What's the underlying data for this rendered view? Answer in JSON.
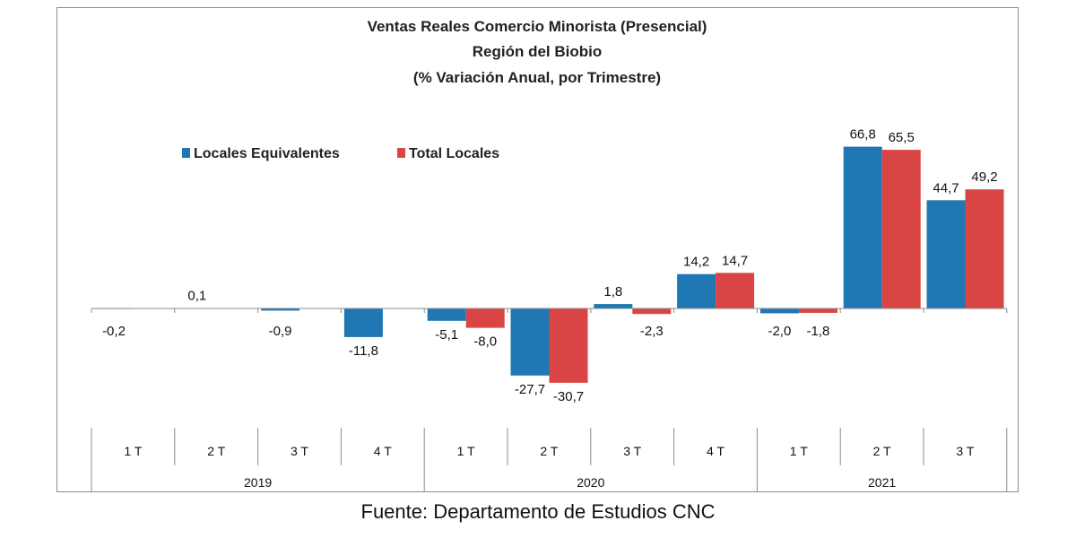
{
  "chart_data": {
    "type": "bar",
    "title": [
      "Ventas Reales Comercio Minorista (Presencial)",
      "Región del Biobio",
      "(% Variación Anual, por Trimestre)"
    ],
    "categories": [
      "1 T",
      "2 T",
      "3 T",
      "4 T",
      "1 T",
      "2 T",
      "3 T",
      "4 T",
      "1 T",
      "2 T",
      "3 T"
    ],
    "groups": [
      {
        "label": "2019",
        "count": 4
      },
      {
        "label": "2020",
        "count": 4
      },
      {
        "label": "2021",
        "count": 3
      }
    ],
    "series": [
      {
        "name": "Locales Equivalentes",
        "color": "#1f77b4",
        "values": [
          -0.2,
          0.1,
          -0.9,
          -11.8,
          -5.1,
          -27.7,
          1.8,
          14.2,
          -2.0,
          66.8,
          44.7
        ],
        "labels": [
          "-0,2",
          "0,1",
          "-0,9",
          "-11,8",
          "-5,1",
          "-27,7",
          "1,8",
          "14,2",
          "-2,0",
          "66,8",
          "44,7"
        ]
      },
      {
        "name": "Total Locales",
        "color": "#d94545",
        "values": [
          null,
          null,
          null,
          null,
          -8.0,
          -30.7,
          -2.3,
          14.7,
          -1.8,
          65.5,
          49.2
        ],
        "labels": [
          "",
          "",
          "",
          "",
          "-8,0",
          "-30,7",
          "-2,3",
          "14,7",
          "-1,8",
          "65,5",
          "49,2"
        ]
      }
    ],
    "ylim": [
      -35,
      75
    ],
    "grid": false,
    "legend": "top-left",
    "xlabel": "",
    "ylabel": ""
  },
  "source": "Fuente: Departamento de Estudios CNC"
}
